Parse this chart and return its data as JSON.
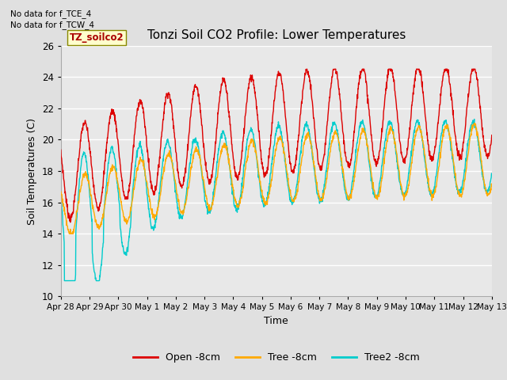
{
  "title": "Tonzi Soil CO2 Profile: Lower Temperatures",
  "xlabel": "Time",
  "ylabel": "Soil Temperatures (C)",
  "annotation_lines": [
    "No data for f_TCE_4",
    "No data for f_TCW_4"
  ],
  "box_label": "TZ_soilco2",
  "ylim": [
    10,
    26
  ],
  "yticks": [
    10,
    12,
    14,
    16,
    18,
    20,
    22,
    24,
    26
  ],
  "background_color": "#e0e0e0",
  "plot_bg_color": "#e8e8e8",
  "grid_color": "white",
  "line_colors": {
    "open": "#dd0000",
    "tree": "#ffaa00",
    "tree2": "#00cccc"
  },
  "legend_labels": [
    "Open -8cm",
    "Tree -8cm",
    "Tree2 -8cm"
  ],
  "x_tick_labels": [
    "Apr 28",
    "Apr 29",
    "Apr 30",
    "May 1",
    "May 2",
    "May 3",
    "May 4",
    "May 5",
    "May 6",
    "May 7",
    "May 8",
    "May 9",
    "May 10",
    "May 11",
    "May 12",
    "May 13"
  ],
  "n_days": 15.5
}
